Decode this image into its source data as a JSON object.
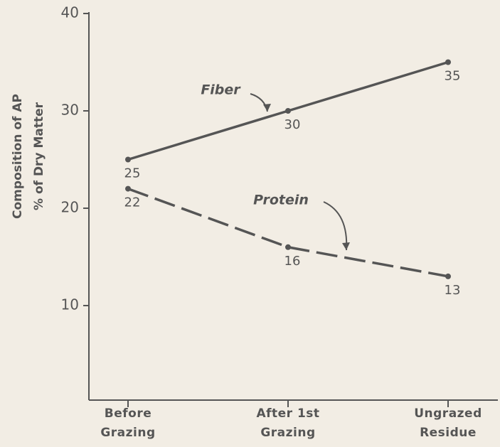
{
  "chart_data": {
    "type": "line",
    "y_label": [
      "Composition of AP",
      "% of Dry Matter"
    ],
    "categories": [
      "Before Grazing",
      "After 1st Grazing",
      "Ungrazed Residue"
    ],
    "series": [
      {
        "name": "Fiber",
        "color": "#555555",
        "dash": false,
        "values": [
          25,
          30,
          35
        ]
      },
      {
        "name": "Protein",
        "color": "#555555",
        "dash": true,
        "values": [
          22,
          16,
          13
        ]
      }
    ],
    "ylim": [
      0,
      40
    ],
    "yticks": [
      10,
      20,
      30,
      40
    ],
    "grid": false
  }
}
